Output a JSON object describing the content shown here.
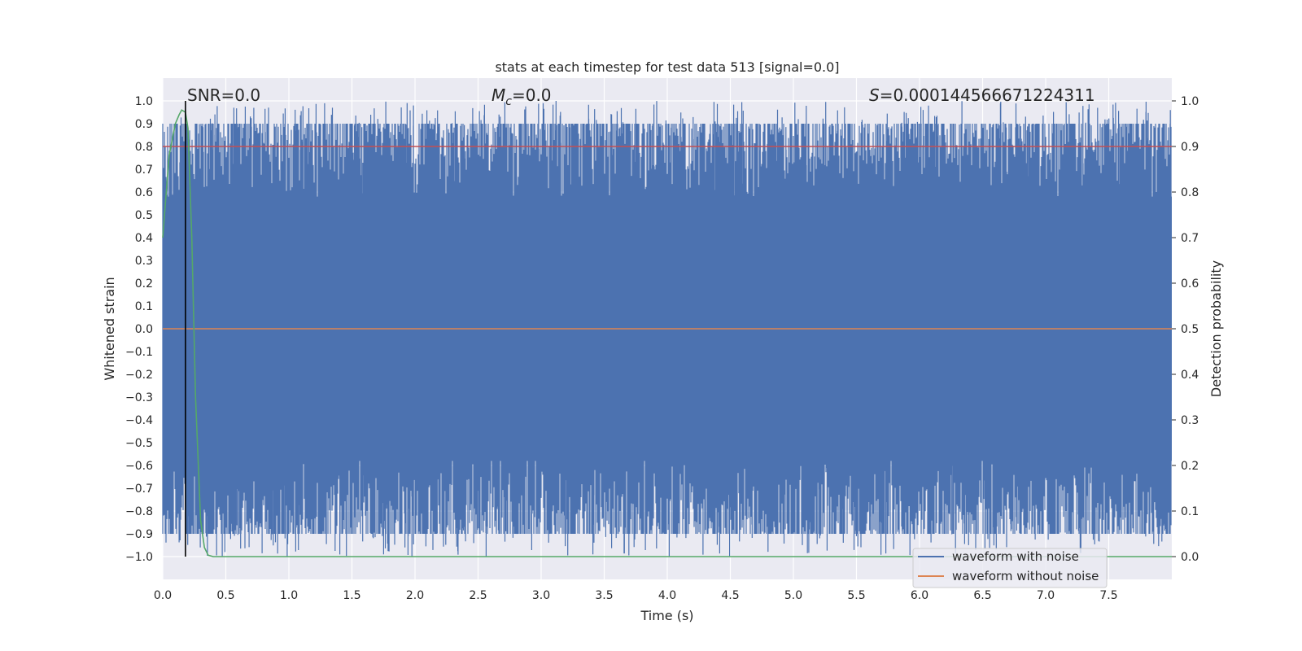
{
  "chart_data": {
    "type": "line",
    "title": "stats at each timestep for test data 513 [signal=0.0]",
    "xlabel": "Time (s)",
    "ylabel": "Whitened strain",
    "y2label": "Detection probability",
    "xlim": [
      0,
      8
    ],
    "ylim": [
      -1.1,
      1.1
    ],
    "y2lim": [
      -0.05,
      1.05
    ],
    "xticks": [
      "0.0",
      "0.5",
      "1.0",
      "1.5",
      "2.0",
      "2.5",
      "3.0",
      "3.5",
      "4.0",
      "4.5",
      "5.0",
      "5.5",
      "6.0",
      "6.5",
      "7.0",
      "7.5"
    ],
    "yticks": [
      "1.0",
      "0.9",
      "0.8",
      "0.7",
      "0.6",
      "0.5",
      "0.4",
      "0.3",
      "0.2",
      "0.1",
      "0.0",
      "−0.1",
      "−0.2",
      "−0.3",
      "−0.4",
      "−0.5",
      "−0.6",
      "−0.7",
      "−0.8",
      "−0.9",
      "−1.0"
    ],
    "y2ticks": [
      "1.0",
      "0.9",
      "0.8",
      "0.7",
      "0.6",
      "0.5",
      "0.4",
      "0.3",
      "0.2",
      "0.1",
      "0.0"
    ],
    "grid": true,
    "annotations": {
      "snr": "SNR=0.0",
      "mc_sym": "M",
      "mc_sub": "c",
      "mc_val": "=0.0",
      "s_sym": "S",
      "s_val": "=0.000144566671224311"
    },
    "series": [
      {
        "name": "waveform with noise",
        "color": "#4c72b0",
        "kind": "dense noise spanning whitened strain -1.0 to 1.0 over 0–8 s",
        "range": [
          -1.0,
          1.0
        ]
      },
      {
        "name": "waveform without noise",
        "color": "#dd8452",
        "x": [
          0,
          8
        ],
        "y": [
          0,
          0
        ]
      },
      {
        "axis": "right",
        "color": "#55a868",
        "x": [
          0.0,
          0.05,
          0.1,
          0.13,
          0.15,
          0.18,
          0.2,
          0.23,
          0.26,
          0.3,
          0.33,
          0.36,
          0.4,
          8.0
        ],
        "y": [
          0.7,
          0.88,
          0.95,
          0.97,
          0.98,
          0.975,
          0.94,
          0.7,
          0.35,
          0.08,
          0.02,
          0.003,
          0.0,
          0.0
        ]
      },
      {
        "axis": "right",
        "color": "#c44e52",
        "x": [
          0,
          8
        ],
        "y": [
          0.9,
          0.9
        ]
      }
    ],
    "vline": {
      "x": 0.18,
      "color": "#000000"
    },
    "legend": "bottom-right"
  }
}
